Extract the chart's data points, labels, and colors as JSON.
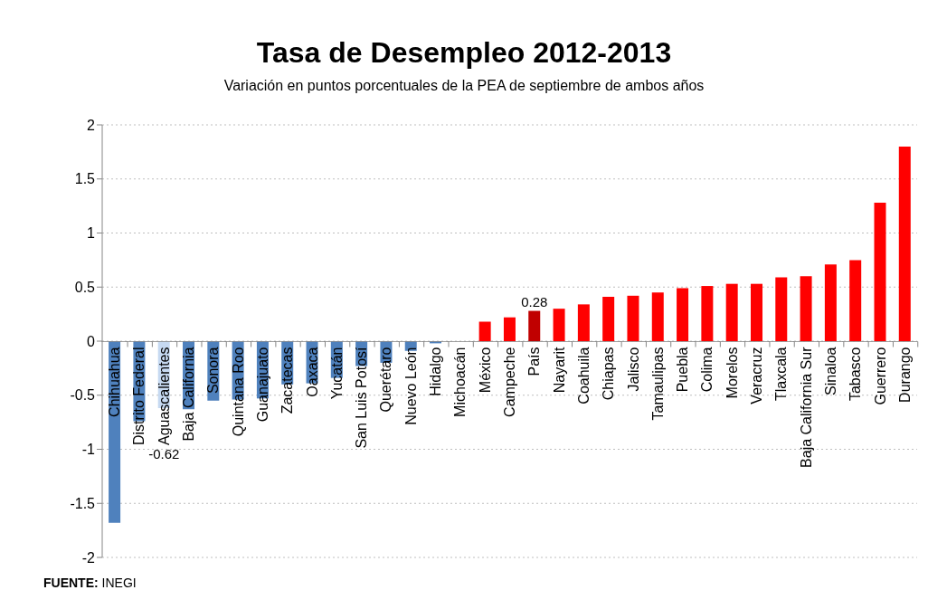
{
  "chart_data": {
    "type": "bar",
    "title": "Tasa de Desempleo 2012-2013",
    "subtitle": "Variación en puntos porcentuales de la PEA de septiembre de ambos  años",
    "categories": [
      "Chihuahua",
      "Distrito Federal",
      "Aguascalientes",
      "Baja California",
      "Sonora",
      "Quintana Roo",
      "Guanajuato",
      "Zacatecas",
      "Oaxaca",
      "Yucatán",
      "San Luis Potosí",
      "Querétaro",
      "Nuevo León",
      "Hidalgo",
      "Michoacán",
      "México",
      "Campeche",
      "País",
      "Nayarit",
      "Coahuila",
      "Chiapas",
      "Jalisco",
      "Tamaulipas",
      "Puebla",
      "Colima",
      "Morelos",
      "Veracruz",
      "Tlaxcala",
      "Baja California Sur",
      "Sinaloa",
      "Tabasco",
      "Guerrero",
      "Durango"
    ],
    "values": [
      -1.68,
      -0.74,
      -0.62,
      -0.63,
      -0.55,
      -0.54,
      -0.53,
      -0.4,
      -0.39,
      -0.34,
      -0.23,
      -0.2,
      -0.09,
      -0.02,
      0,
      0.18,
      0.22,
      0.28,
      0.3,
      0.34,
      0.41,
      0.42,
      0.45,
      0.49,
      0.51,
      0.53,
      0.53,
      0.59,
      0.6,
      0.71,
      0.75,
      1.28,
      1.8
    ],
    "colors": [
      "#4f81bd",
      "#4f81bd",
      "#c6d9f1",
      "#4f81bd",
      "#4f81bd",
      "#4f81bd",
      "#4f81bd",
      "#4f81bd",
      "#4f81bd",
      "#4f81bd",
      "#4f81bd",
      "#4f81bd",
      "#4f81bd",
      "#4f81bd",
      "#4f81bd",
      "#ff0000",
      "#ff0000",
      "#c00000",
      "#ff0000",
      "#ff0000",
      "#ff0000",
      "#ff0000",
      "#ff0000",
      "#ff0000",
      "#ff0000",
      "#ff0000",
      "#ff0000",
      "#ff0000",
      "#ff0000",
      "#ff0000",
      "#ff0000",
      "#ff0000",
      "#ff0000"
    ],
    "value_labels": [
      null,
      null,
      "-0.62",
      null,
      null,
      null,
      null,
      null,
      null,
      null,
      null,
      null,
      null,
      null,
      null,
      null,
      null,
      "0.28",
      null,
      null,
      null,
      null,
      null,
      null,
      null,
      null,
      null,
      null,
      null,
      null,
      null,
      null,
      null
    ],
    "ylim": [
      -2,
      2
    ],
    "yticks": [
      2,
      1.5,
      1,
      0.5,
      0,
      -0.5,
      -1,
      -1.5,
      -2
    ],
    "grid": "y",
    "legend": false,
    "annotations": [
      "FUENTE: INEGI"
    ]
  }
}
